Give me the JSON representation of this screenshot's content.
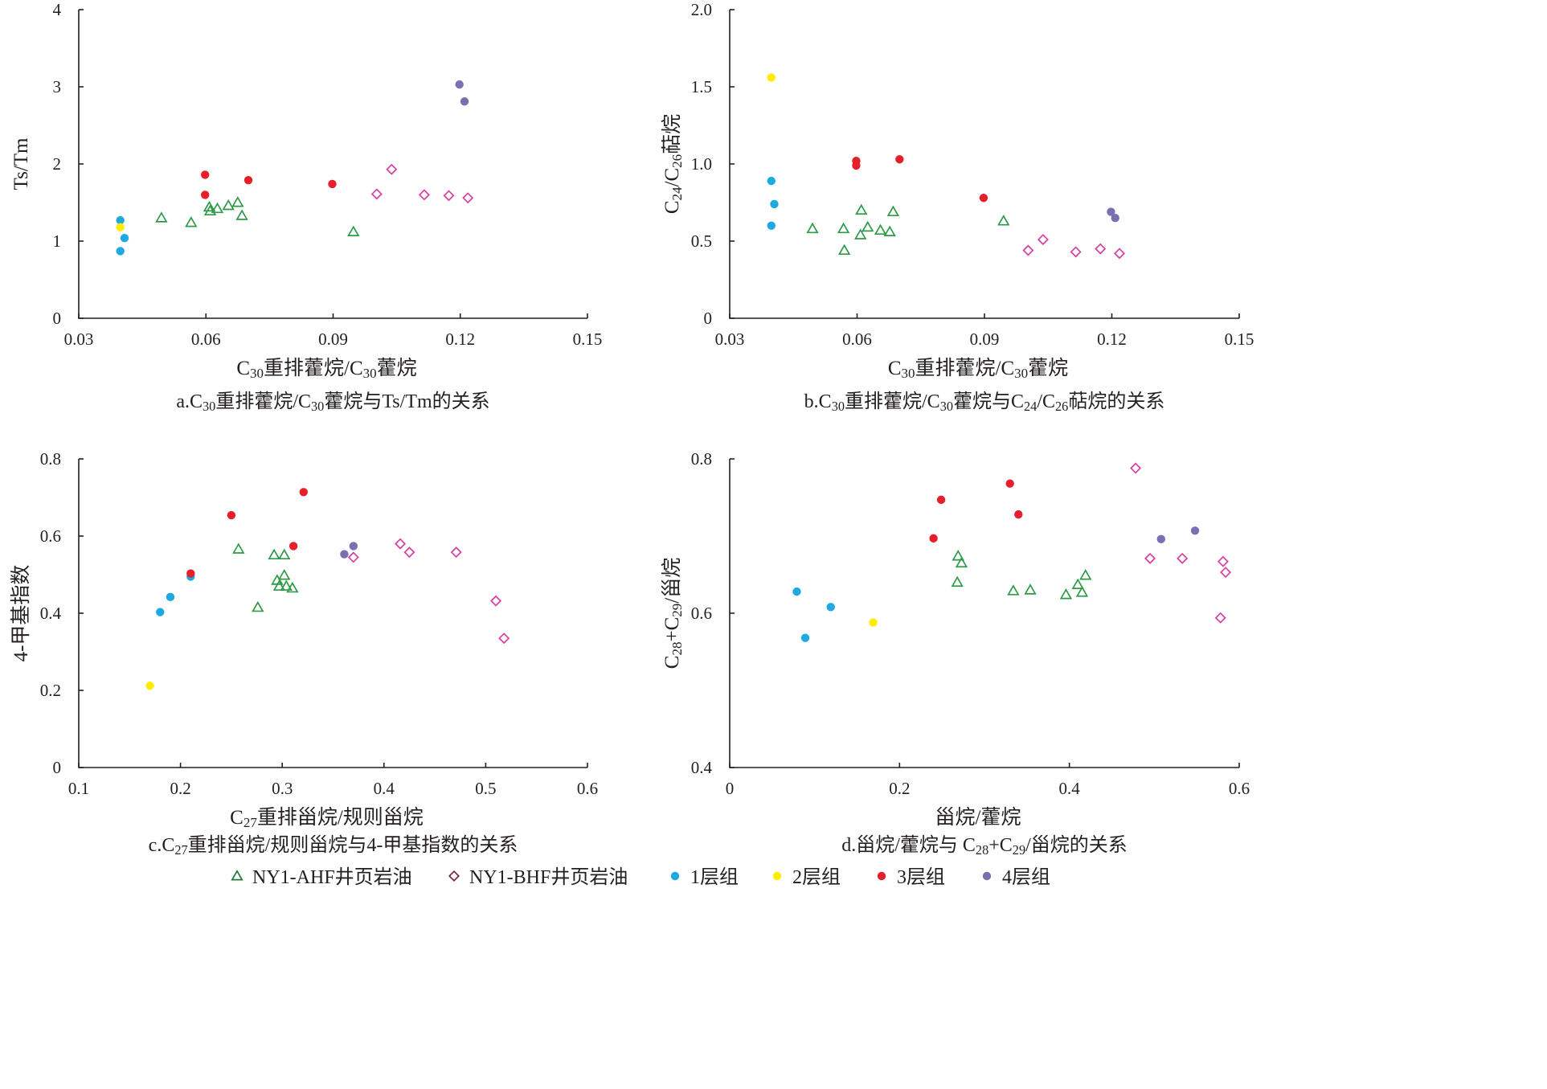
{
  "legend": [
    {
      "key": "ahf",
      "label": "NY1-AHF井页岩油",
      "marker": "triangle",
      "color": "#2e9a47"
    },
    {
      "key": "bhf",
      "label": "NY1-BHF井页岩油",
      "marker": "diamond",
      "color": "#d63fa3"
    },
    {
      "key": "l1",
      "label": "1层组",
      "marker": "circle",
      "color": "#1ea9e1"
    },
    {
      "key": "l2",
      "label": "2层组",
      "marker": "circle",
      "color": "#ffed00"
    },
    {
      "key": "l3",
      "label": "3层组",
      "marker": "circle",
      "color": "#e6202a"
    },
    {
      "key": "l4",
      "label": "4层组",
      "marker": "circle",
      "color": "#7b6fb3"
    }
  ],
  "legend_marker_colors": {
    "ahf": "#1f7a3a",
    "bhf": "#7a2246"
  },
  "chart_data": [
    {
      "id": "a",
      "type": "scatter",
      "caption": [
        "a.C",
        "30",
        "重排藿烷/C",
        "30",
        "藿烷与Ts/Tm的关系"
      ],
      "xlabel": [
        "C",
        "30",
        "重排藿烷/C",
        "30",
        "藿烷"
      ],
      "ylabel": [
        "Ts/Tm"
      ],
      "xlim": [
        0.03,
        0.15
      ],
      "ylim": [
        0,
        4
      ],
      "xticks": [
        "0.03",
        "0.06",
        "0.09",
        "0.12",
        "0.15"
      ],
      "yticks": [
        "0",
        "1",
        "2",
        "3",
        "4"
      ],
      "series": [
        {
          "key": "ahf",
          "points": [
            [
              0.0495,
              1.3
            ],
            [
              0.0565,
              1.24
            ],
            [
              0.0608,
              1.44
            ],
            [
              0.061,
              1.39
            ],
            [
              0.0627,
              1.42
            ],
            [
              0.0653,
              1.46
            ],
            [
              0.0675,
              1.5
            ],
            [
              0.0685,
              1.33
            ],
            [
              0.0948,
              1.12
            ]
          ]
        },
        {
          "key": "bhf",
          "points": [
            [
              0.1003,
              1.61
            ],
            [
              0.1038,
              1.93
            ],
            [
              0.1115,
              1.6
            ],
            [
              0.1173,
              1.59
            ],
            [
              0.1218,
              1.56
            ]
          ]
        },
        {
          "key": "l1",
          "points": [
            [
              0.0398,
              1.27
            ],
            [
              0.0408,
              1.04
            ],
            [
              0.0398,
              0.87
            ]
          ]
        },
        {
          "key": "l2",
          "points": [
            [
              0.0398,
              1.18
            ]
          ]
        },
        {
          "key": "l3",
          "points": [
            [
              0.0598,
              1.86
            ],
            [
              0.0598,
              1.6
            ],
            [
              0.07,
              1.79
            ],
            [
              0.0898,
              1.74
            ]
          ]
        },
        {
          "key": "l4",
          "points": [
            [
              0.1198,
              3.03
            ],
            [
              0.121,
              2.81
            ]
          ]
        }
      ]
    },
    {
      "id": "b",
      "type": "scatter",
      "caption": [
        "b.C",
        "30",
        "重排藿烷/C",
        "30",
        "藿烷与C",
        "24",
        "/C",
        "26",
        "萜烷的关系"
      ],
      "xlabel": [
        "C",
        "30",
        "重排藿烷/C",
        "30",
        "藿烷"
      ],
      "ylabel": [
        "C",
        "24",
        "/C",
        "26",
        "萜烷"
      ],
      "xlim": [
        0.03,
        0.15
      ],
      "ylim": [
        0,
        2
      ],
      "xticks": [
        "0.03",
        "0.06",
        "0.09",
        "0.12",
        "0.15"
      ],
      "yticks": [
        "0",
        "0.5",
        "1.0",
        "1.5",
        "2.0"
      ],
      "series": [
        {
          "key": "ahf",
          "points": [
            [
              0.0495,
              0.58
            ],
            [
              0.0568,
              0.58
            ],
            [
              0.057,
              0.44
            ],
            [
              0.0608,
              0.54
            ],
            [
              0.061,
              0.7
            ],
            [
              0.0625,
              0.59
            ],
            [
              0.0655,
              0.57
            ],
            [
              0.0677,
              0.56
            ],
            [
              0.0685,
              0.69
            ],
            [
              0.0945,
              0.63
            ]
          ]
        },
        {
          "key": "bhf",
          "points": [
            [
              0.1003,
              0.44
            ],
            [
              0.1038,
              0.51
            ],
            [
              0.1115,
              0.43
            ],
            [
              0.1173,
              0.45
            ],
            [
              0.1218,
              0.42
            ]
          ]
        },
        {
          "key": "l1",
          "points": [
            [
              0.0398,
              0.89
            ],
            [
              0.0405,
              0.74
            ],
            [
              0.0398,
              0.6
            ]
          ]
        },
        {
          "key": "l2",
          "points": [
            [
              0.0398,
              1.56
            ]
          ]
        },
        {
          "key": "l3",
          "points": [
            [
              0.0598,
              1.02
            ],
            [
              0.0598,
              0.99
            ],
            [
              0.07,
              1.03
            ],
            [
              0.0898,
              0.78
            ]
          ]
        },
        {
          "key": "l4",
          "points": [
            [
              0.1198,
              0.69
            ],
            [
              0.1208,
              0.65
            ]
          ]
        }
      ]
    },
    {
      "id": "c",
      "type": "scatter",
      "caption": [
        "c.C",
        "27",
        "重排甾烷/规则甾烷与4-甲基指数的关系"
      ],
      "xlabel": [
        "C",
        "27",
        "重排甾烷/规则甾烷"
      ],
      "ylabel": [
        "4-甲基指数"
      ],
      "xlim": [
        0.1,
        0.6
      ],
      "ylim": [
        0,
        0.8
      ],
      "xticks": [
        "0.1",
        "0.2",
        "0.3",
        "0.4",
        "0.5",
        "0.6"
      ],
      "yticks": [
        "0",
        "0.2",
        "0.4",
        "0.6",
        "0.8"
      ],
      "series": [
        {
          "key": "ahf",
          "points": [
            [
              0.257,
              0.566
            ],
            [
              0.292,
              0.551
            ],
            [
              0.302,
              0.551
            ],
            [
              0.276,
              0.415
            ],
            [
              0.295,
              0.485
            ],
            [
              0.302,
              0.498
            ],
            [
              0.297,
              0.47
            ],
            [
              0.304,
              0.47
            ],
            [
              0.31,
              0.465
            ]
          ]
        },
        {
          "key": "bhf",
          "points": [
            [
              0.37,
              0.545
            ],
            [
              0.416,
              0.58
            ],
            [
              0.425,
              0.558
            ],
            [
              0.471,
              0.558
            ],
            [
              0.51,
              0.432
            ],
            [
              0.518,
              0.335
            ]
          ]
        },
        {
          "key": "l1",
          "points": [
            [
              0.18,
              0.403
            ],
            [
              0.19,
              0.442
            ],
            [
              0.21,
              0.495
            ]
          ]
        },
        {
          "key": "l2",
          "points": [
            [
              0.17,
              0.212
            ]
          ]
        },
        {
          "key": "l3",
          "points": [
            [
              0.21,
              0.503
            ],
            [
              0.25,
              0.654
            ],
            [
              0.311,
              0.574
            ],
            [
              0.321,
              0.714
            ]
          ]
        },
        {
          "key": "l4",
          "points": [
            [
              0.361,
              0.553
            ],
            [
              0.37,
              0.574
            ]
          ]
        }
      ]
    },
    {
      "id": "d",
      "type": "scatter",
      "caption": [
        "d.甾烷/藿烷与 C",
        "28",
        "+C",
        "29",
        "/甾烷的关系"
      ],
      "xlabel": [
        "甾烷/藿烷"
      ],
      "ylabel": [
        "C",
        "28",
        "+C",
        "29",
        "/甾烷"
      ],
      "xlim": [
        0,
        0.6
      ],
      "ylim": [
        0.4,
        0.8
      ],
      "xticks": [
        "0",
        "0.2",
        "0.4",
        "0.6"
      ],
      "yticks": [
        "0.4",
        "0.6",
        "0.8"
      ],
      "series": [
        {
          "key": "ahf",
          "points": [
            [
              0.269,
              0.674
            ],
            [
              0.273,
              0.665
            ],
            [
              0.268,
              0.64
            ],
            [
              0.334,
              0.629
            ],
            [
              0.354,
              0.63
            ],
            [
              0.396,
              0.624
            ],
            [
              0.41,
              0.637
            ],
            [
              0.419,
              0.649
            ],
            [
              0.415,
              0.627
            ]
          ]
        },
        {
          "key": "bhf",
          "points": [
            [
              0.478,
              0.788
            ],
            [
              0.495,
              0.671
            ],
            [
              0.533,
              0.671
            ],
            [
              0.581,
              0.667
            ],
            [
              0.584,
              0.653
            ],
            [
              0.578,
              0.594
            ]
          ]
        },
        {
          "key": "l1",
          "points": [
            [
              0.079,
              0.628
            ],
            [
              0.119,
              0.608
            ],
            [
              0.089,
              0.568
            ]
          ]
        },
        {
          "key": "l2",
          "points": [
            [
              0.169,
              0.588
            ]
          ]
        },
        {
          "key": "l3",
          "points": [
            [
              0.24,
              0.697
            ],
            [
              0.249,
              0.747
            ],
            [
              0.33,
              0.768
            ],
            [
              0.34,
              0.728
            ]
          ]
        },
        {
          "key": "l4",
          "points": [
            [
              0.508,
              0.696
            ],
            [
              0.548,
              0.707
            ]
          ]
        }
      ]
    }
  ]
}
